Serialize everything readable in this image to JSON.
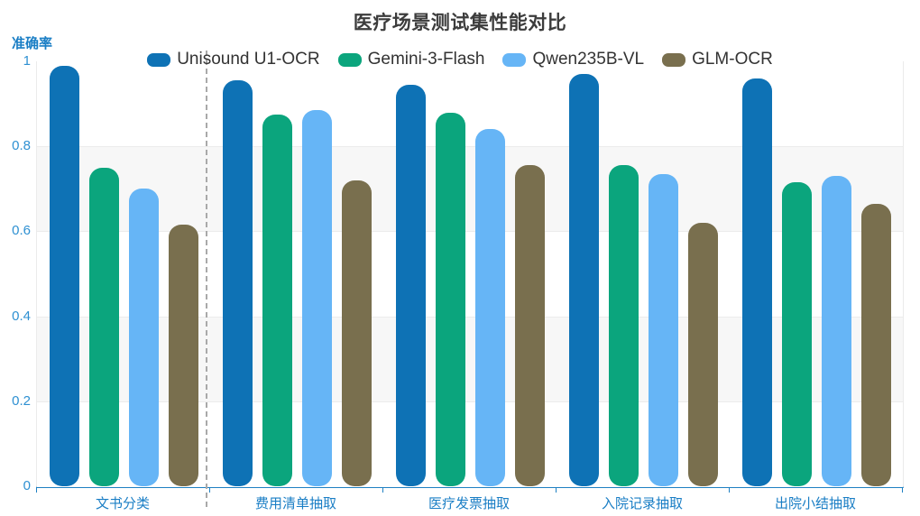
{
  "title": "医疗场景测试集性能对比",
  "y_axis_name": "准确率",
  "chart_data": {
    "type": "bar",
    "title": "医疗场景测试集性能对比",
    "xlabel": "",
    "ylabel": "准确率",
    "ylim": [
      0,
      1
    ],
    "yticks": [
      "1",
      "0.8",
      "0.6",
      "0.4",
      "0.2",
      "0"
    ],
    "grid": true,
    "legend_position": "top",
    "background_bands": "alternating white / light-gray every 0.2",
    "categories": [
      "文书分类",
      "费用清单抽取",
      "医疗发票抽取",
      "入院记录抽取",
      "出院小结抽取"
    ],
    "series": [
      {
        "name": "Unisound U1-OCR",
        "color": "#0e72b5",
        "values": [
          0.99,
          0.955,
          0.945,
          0.97,
          0.96
        ]
      },
      {
        "name": "Gemini-3-Flash",
        "color": "#0ba57d",
        "values": [
          0.75,
          0.875,
          0.88,
          0.755,
          0.715
        ]
      },
      {
        "name": "Qwen235B-VL",
        "color": "#66b5f6",
        "values": [
          0.7,
          0.885,
          0.84,
          0.735,
          0.73
        ]
      },
      {
        "name": "GLM-OCR",
        "color": "#796f4e",
        "values": [
          0.615,
          0.72,
          0.755,
          0.62,
          0.665
        ]
      }
    ],
    "separator": {
      "style": "dashed",
      "after_category_index": 0
    }
  },
  "colors": {
    "axis_line": "#1f80c2",
    "axis_label_blue": "#1a7ec5",
    "tick_label_blue": "#2e90d2",
    "band_gray": "#f7f7f7",
    "gridline": "#ececec",
    "title_text": "#3c3c3c",
    "legend_text": "#333333",
    "separator_gray": "#a9a9a9"
  }
}
